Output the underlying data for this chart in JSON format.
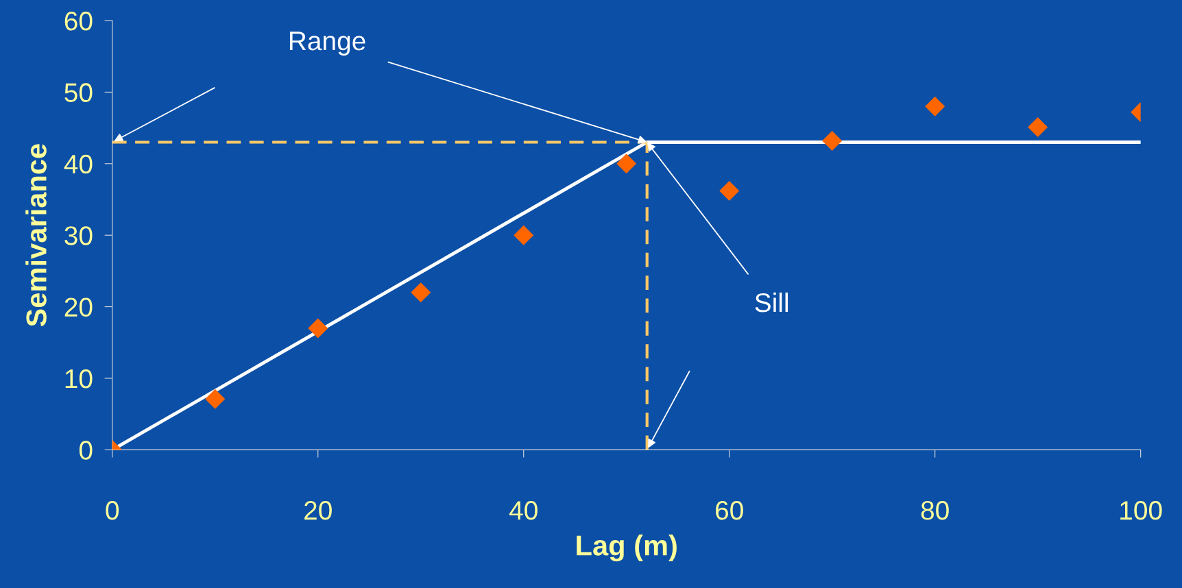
{
  "chart_data": {
    "type": "scatter",
    "xlabel": "Lag (m)",
    "ylabel": "Semivariance",
    "xlim": [
      0,
      100
    ],
    "xticks": [
      0,
      20,
      40,
      60,
      80,
      100
    ],
    "ylim": [
      0,
      60
    ],
    "yticks": [
      0,
      10,
      20,
      30,
      40,
      50,
      60
    ],
    "grid": false,
    "legend": false,
    "series": [
      {
        "color": "#ff6600",
        "marker": "diamond",
        "x": [
          0,
          10,
          20,
          30,
          40,
          50,
          60,
          70,
          80,
          90,
          100
        ],
        "values": [
          0,
          7.1,
          17,
          22,
          30,
          40,
          36.2,
          43.2,
          48,
          45.1,
          47.2
        ]
      },
      {
        "type": "line",
        "color": "#ffffff",
        "line_style": "solid",
        "x": [
          0,
          52,
          100
        ],
        "values": [
          0,
          43,
          43
        ]
      },
      {
        "type": "line",
        "color": "#ffc966",
        "line_style": "dashed",
        "x": [
          0,
          52
        ],
        "values": [
          43,
          43
        ]
      },
      {
        "type": "line",
        "color": "#ffc966",
        "line_style": "dashed",
        "x": [
          52,
          52
        ],
        "values": [
          0,
          43
        ]
      }
    ],
    "annotations": [
      {
        "text": "Range",
        "x": 52,
        "y": 43
      },
      {
        "text": "Sill",
        "x": 52,
        "y": 43
      }
    ]
  }
}
